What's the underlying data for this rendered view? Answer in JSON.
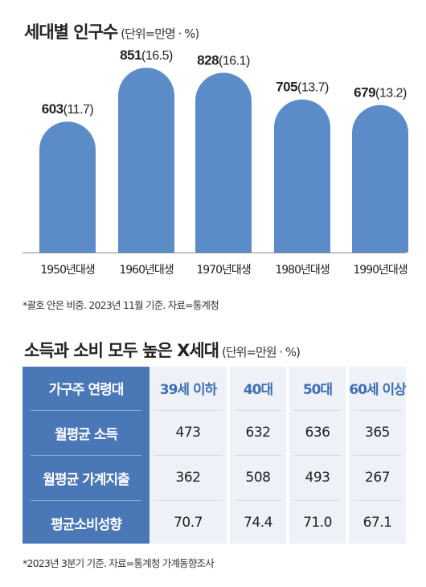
{
  "chart_title": "세대별 인구수",
  "chart_unit": "(단위=만명 · %)",
  "chart_data": {
    "type": "bar",
    "categories": [
      "1950년대생",
      "1960년대생",
      "1970년대생",
      "1980년대생",
      "1990년대생"
    ],
    "series": [
      {
        "values": [
          603,
          851,
          828,
          705,
          679
        ]
      }
    ],
    "shares": [
      "11.7",
      "16.5",
      "16.1",
      "13.7",
      "13.2"
    ],
    "bar_color": "#5b8cc8"
  },
  "chart_note": "*괄호 안은 비중. 2023년 11월 기준. 자료=통계청",
  "table_title": "소득과 소비 모두 높은 X세대",
  "table_unit": "(단위=만원 · %)",
  "table": {
    "corner": "가구주 연령대",
    "columns": [
      "39세 이하",
      "40대",
      "50대",
      "60세 이상"
    ],
    "rows": [
      {
        "label": "월평균 소득",
        "values": [
          "473",
          "632",
          "636",
          "365"
        ]
      },
      {
        "label": "월평균 가계지출",
        "values": [
          "362",
          "508",
          "493",
          "267"
        ]
      },
      {
        "label": "평균소비성향",
        "values": [
          "70.7",
          "74.4",
          "71.0",
          "67.1"
        ]
      }
    ],
    "header_color": "#4a78b7",
    "accent_color": "#3e6fb3"
  },
  "table_note": "*2023년 3분기 기준. 자료=통계청 가계동향조사"
}
